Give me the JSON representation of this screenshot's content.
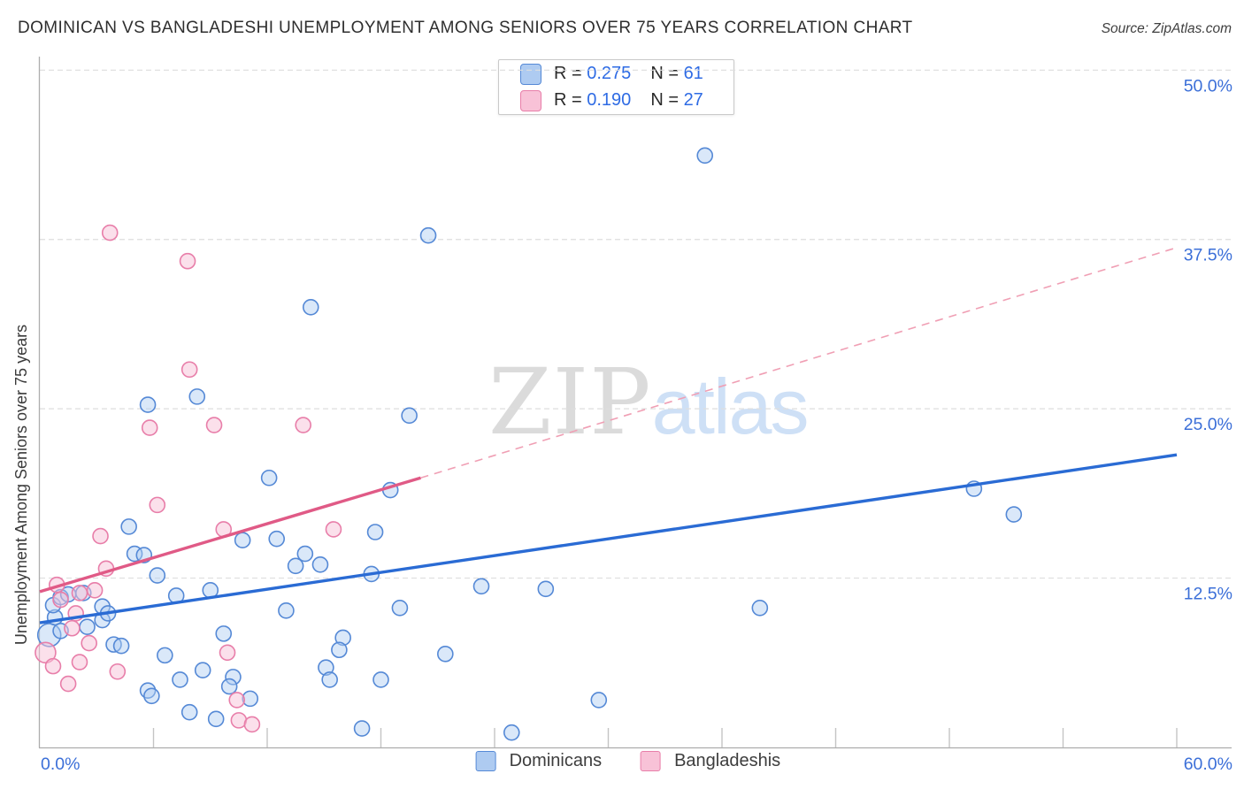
{
  "page": {
    "title": "DOMINICAN VS BANGLADESHI UNEMPLOYMENT AMONG SENIORS OVER 75 YEARS CORRELATION CHART",
    "source": "Source: ZipAtlas.com"
  },
  "stats_box": {
    "rows": [
      {
        "series": "Dominicans",
        "r_label": "R = ",
        "r_value": "0.275",
        "n_label": "N = ",
        "n_value": "61"
      },
      {
        "series": "Bangladeshis",
        "r_label": "R = ",
        "r_value": "0.190",
        "n_label": "N = ",
        "n_value": "27"
      }
    ]
  },
  "watermark": {
    "part1": "ZIP",
    "part2": "atlas"
  },
  "bottom_legend": {
    "items": [
      {
        "label": "Dominicans"
      },
      {
        "label": "Bangladeshis"
      }
    ]
  },
  "colors": {
    "accent_text": "#3b6fd8",
    "title_text": "#2e2e2e",
    "source_text": "#3f3f3f",
    "value_text": "#2e6be4",
    "dominicans_fill": "#aecbf1",
    "dominicans_stroke": "#5589d6",
    "dominicans_line": "#2a6bd4",
    "bangladeshis_fill": "#f8c2d7",
    "bangladeshis_stroke": "#e87ea9",
    "bangladeshis_line": "#e05a86",
    "bangladeshis_projection": "#f09fb4",
    "gridline": "#dedede",
    "axis": "#adadad",
    "tick": "#c4c4c4",
    "watermark_zip": "#dbdbdb",
    "watermark_atlas": "#cee0f6"
  },
  "chart_data": {
    "type": "scatter",
    "title": "DOMINICAN VS BANGLADESHI UNEMPLOYMENT AMONG SENIORS OVER 75 YEARS CORRELATION CHART",
    "xlabel": "",
    "ylabel": "Unemployment Among Seniors over 75 years",
    "xlim": [
      0,
      60
    ],
    "ylim": [
      0,
      51
    ],
    "grid": "horizontal-dashed",
    "legend_position": "bottom-center",
    "x_tick_step": 6,
    "x_tick_labels": [
      {
        "value": 0,
        "label": "0.0%"
      },
      {
        "value": 60,
        "label": "60.0%"
      }
    ],
    "y_gridlines": [
      {
        "value": 50,
        "label": "50.0%"
      },
      {
        "value": 37.5,
        "label": "37.5%"
      },
      {
        "value": 25,
        "label": "25.0%"
      },
      {
        "value": 12.5,
        "label": "12.5%"
      }
    ],
    "series": [
      {
        "name": "Dominicans",
        "r": 0.275,
        "n": 61,
        "points": [
          [
            35.1,
            43.7
          ],
          [
            20.5,
            37.8
          ],
          [
            14.3,
            32.5
          ],
          [
            8.3,
            25.9
          ],
          [
            5.7,
            25.3
          ],
          [
            19.5,
            24.5
          ],
          [
            12.1,
            19.9
          ],
          [
            18.5,
            19.0
          ],
          [
            49.3,
            19.1
          ],
          [
            51.4,
            17.2
          ],
          [
            4.7,
            16.3
          ],
          [
            10.7,
            15.3
          ],
          [
            12.5,
            15.4
          ],
          [
            14.0,
            14.3
          ],
          [
            13.5,
            13.4
          ],
          [
            14.8,
            13.5
          ],
          [
            17.7,
            15.9
          ],
          [
            17.5,
            12.8
          ],
          [
            23.3,
            11.9
          ],
          [
            26.7,
            11.7
          ],
          [
            38.0,
            10.3
          ],
          [
            19.0,
            10.3
          ],
          [
            16.0,
            8.1
          ],
          [
            15.8,
            7.2
          ],
          [
            15.1,
            5.9
          ],
          [
            15.3,
            5.0
          ],
          [
            18.0,
            5.0
          ],
          [
            21.4,
            6.9
          ],
          [
            29.5,
            3.5
          ],
          [
            17.0,
            1.4
          ],
          [
            24.9,
            1.1
          ],
          [
            0.5,
            8.3,
            13
          ],
          [
            0.8,
            9.6
          ],
          [
            0.7,
            10.5
          ],
          [
            1.1,
            11.1
          ],
          [
            1.5,
            11.3
          ],
          [
            2.3,
            11.4
          ],
          [
            1.1,
            8.6
          ],
          [
            2.5,
            8.9
          ],
          [
            3.3,
            9.4
          ],
          [
            3.3,
            10.4
          ],
          [
            3.6,
            9.9
          ],
          [
            3.9,
            7.6
          ],
          [
            4.3,
            7.5
          ],
          [
            5.0,
            14.3
          ],
          [
            5.5,
            14.2
          ],
          [
            6.2,
            12.7
          ],
          [
            7.2,
            11.2
          ],
          [
            9.0,
            11.6
          ],
          [
            9.7,
            8.4
          ],
          [
            6.6,
            6.8
          ],
          [
            8.6,
            5.7
          ],
          [
            7.4,
            5.0
          ],
          [
            5.7,
            4.2
          ],
          [
            10.2,
            5.2
          ],
          [
            10.0,
            4.5
          ],
          [
            13.0,
            10.1
          ],
          [
            5.9,
            3.8
          ],
          [
            7.9,
            2.6
          ],
          [
            9.3,
            2.1
          ],
          [
            11.1,
            3.6
          ]
        ]
      },
      {
        "name": "Bangladeshis",
        "r": 0.19,
        "n": 27,
        "points": [
          [
            3.7,
            38.0
          ],
          [
            7.8,
            35.9
          ],
          [
            7.9,
            27.9
          ],
          [
            5.8,
            23.6
          ],
          [
            9.2,
            23.8
          ],
          [
            13.9,
            23.8
          ],
          [
            6.2,
            17.9
          ],
          [
            3.2,
            15.6
          ],
          [
            9.7,
            16.1
          ],
          [
            15.5,
            16.1
          ],
          [
            3.5,
            13.2
          ],
          [
            2.9,
            11.6
          ],
          [
            2.1,
            11.4
          ],
          [
            1.1,
            10.9
          ],
          [
            1.7,
            8.8
          ],
          [
            2.6,
            7.7
          ],
          [
            0.3,
            7.0,
            11.5
          ],
          [
            0.7,
            6.0
          ],
          [
            2.1,
            6.3
          ],
          [
            4.1,
            5.6
          ],
          [
            1.5,
            4.7
          ],
          [
            9.9,
            7.0
          ],
          [
            10.4,
            3.5
          ],
          [
            10.5,
            2.0
          ],
          [
            11.2,
            1.7
          ],
          [
            0.9,
            12.0
          ],
          [
            1.9,
            9.9
          ]
        ]
      }
    ],
    "trend_lines": [
      {
        "series": "Dominicans",
        "style": "solid",
        "x0": 0,
        "y0": 9.2,
        "x1": 60,
        "y1": 21.6
      },
      {
        "series": "Bangladeshis",
        "style": "solid",
        "x0": 0,
        "y0": 11.5,
        "x1": 20.1,
        "y1": 19.9
      },
      {
        "series": "Bangladeshis",
        "style": "dashed",
        "x0": 20.1,
        "y0": 19.9,
        "x1": 60,
        "y1": 36.9
      }
    ]
  }
}
